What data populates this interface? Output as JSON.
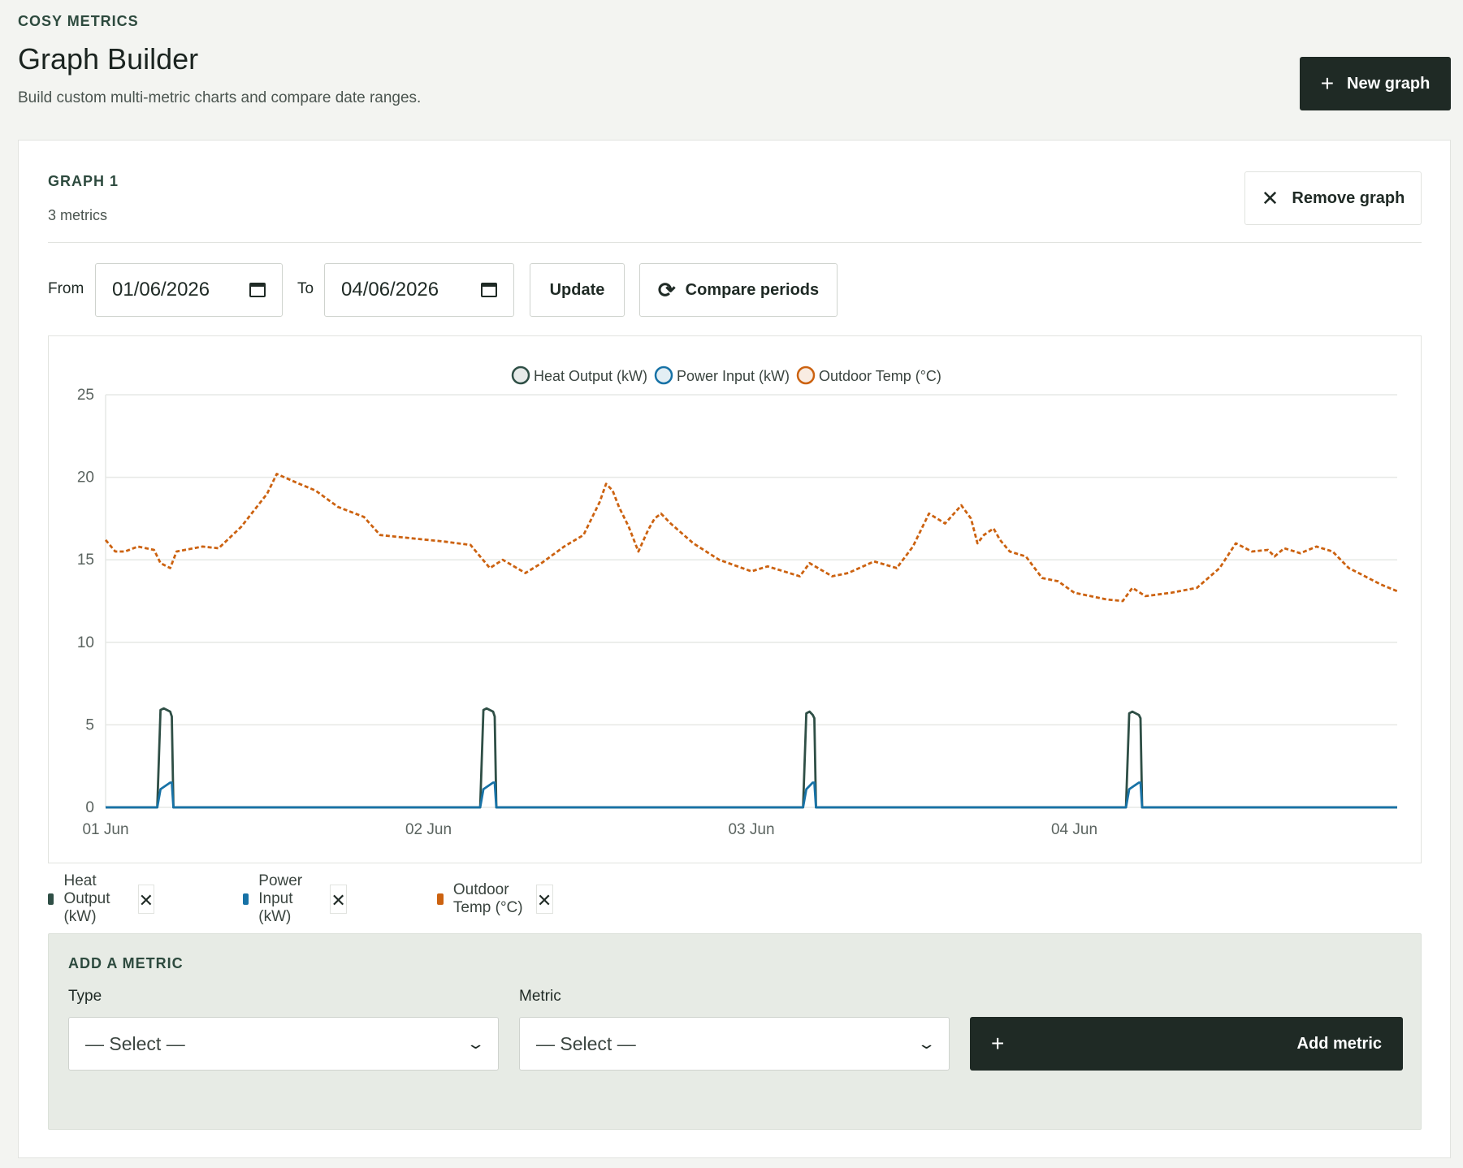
{
  "header": {
    "brand": "COSY METRICS",
    "title": "Graph Builder",
    "subtitle": "Build custom multi-metric charts and compare date ranges.",
    "new_graph_label": "New graph"
  },
  "graph": {
    "label": "GRAPH 1",
    "metric_count": "3 metrics",
    "remove_label": "Remove graph",
    "from_label": "From",
    "from_value": "01/06/2026",
    "to_label": "To",
    "to_value": "04/06/2026",
    "update_label": "Update",
    "compare_label": "Compare periods"
  },
  "metrics": [
    {
      "name": "Heat Output (kW)",
      "color": "#2f4f46"
    },
    {
      "name": "Power Input (kW)",
      "color": "#1772a6"
    },
    {
      "name": "Outdoor Temp (°C)",
      "color": "#cc6210"
    }
  ],
  "add_metric": {
    "title": "ADD A METRIC",
    "type_label": "Type",
    "type_value": "— Select —",
    "metric_label": "Metric",
    "metric_value": "— Select —",
    "button_label": "Add metric"
  },
  "chart_data": {
    "type": "line",
    "ylim": [
      0,
      25
    ],
    "yticks": [
      0,
      5,
      10,
      15,
      20,
      25
    ],
    "xlim": [
      0,
      4
    ],
    "xticks": [
      {
        "x": 0,
        "label": "01 Jun"
      },
      {
        "x": 1,
        "label": "02 Jun"
      },
      {
        "x": 2,
        "label": "03 Jun"
      },
      {
        "x": 3,
        "label": "04 Jun"
      }
    ],
    "legend_position": "top-center",
    "grid": true,
    "series": [
      {
        "name": "Heat Output (kW)",
        "color": "#2f4f46",
        "style": "solid",
        "x": [
          0,
          0.16,
          0.17,
          0.18,
          0.2,
          0.205,
          0.21,
          1.16,
          1.17,
          1.18,
          1.2,
          1.205,
          1.21,
          2.16,
          2.17,
          2.18,
          2.19,
          2.195,
          2.2,
          3.16,
          3.17,
          3.18,
          3.2,
          3.205,
          3.21,
          4
        ],
        "y": [
          0,
          0,
          5.9,
          6.0,
          5.8,
          5.5,
          0,
          0,
          5.9,
          6.0,
          5.8,
          5.5,
          0,
          0,
          5.7,
          5.8,
          5.6,
          5.4,
          0,
          0,
          5.7,
          5.8,
          5.6,
          5.4,
          0,
          0
        ]
      },
      {
        "name": "Power Input (kW)",
        "color": "#1772a6",
        "style": "solid",
        "x": [
          0,
          0.16,
          0.17,
          0.2,
          0.205,
          0.21,
          1.16,
          1.17,
          1.2,
          1.205,
          1.21,
          2.16,
          2.17,
          2.19,
          2.195,
          2.2,
          3.16,
          3.17,
          3.2,
          3.205,
          3.21,
          4
        ],
        "y": [
          0,
          0,
          1.1,
          1.5,
          1.5,
          0,
          0,
          1.1,
          1.5,
          1.5,
          0,
          0,
          1.1,
          1.5,
          1.5,
          0,
          0,
          1.1,
          1.5,
          1.5,
          0,
          0
        ]
      },
      {
        "name": "Outdoor Temp (°C)",
        "color": "#cc6210",
        "style": "dashed",
        "x": [
          0,
          0.03,
          0.06,
          0.1,
          0.15,
          0.17,
          0.2,
          0.22,
          0.3,
          0.35,
          0.42,
          0.5,
          0.53,
          0.6,
          0.65,
          0.72,
          0.8,
          0.85,
          0.9,
          0.95,
          1.05,
          1.13,
          1.19,
          1.23,
          1.3,
          1.35,
          1.42,
          1.48,
          1.53,
          1.55,
          1.57,
          1.59,
          1.62,
          1.65,
          1.68,
          1.7,
          1.72,
          1.75,
          1.82,
          1.9,
          2.0,
          2.05,
          2.1,
          2.15,
          2.18,
          2.25,
          2.3,
          2.38,
          2.45,
          2.5,
          2.55,
          2.6,
          2.65,
          2.68,
          2.7,
          2.72,
          2.75,
          2.77,
          2.8,
          2.85,
          2.9,
          2.95,
          3.0,
          3.05,
          3.1,
          3.15,
          3.18,
          3.22,
          3.3,
          3.38,
          3.45,
          3.5,
          3.55,
          3.6,
          3.62,
          3.65,
          3.7,
          3.75,
          3.8,
          3.85,
          3.9,
          3.95,
          4.0
        ],
        "y": [
          16.2,
          15.5,
          15.5,
          15.8,
          15.6,
          14.8,
          14.5,
          15.5,
          15.8,
          15.7,
          17.0,
          19.0,
          20.2,
          19.6,
          19.2,
          18.2,
          17.6,
          16.5,
          16.4,
          16.3,
          16.1,
          15.9,
          14.5,
          15.0,
          14.2,
          14.8,
          15.8,
          16.5,
          18.5,
          19.6,
          19.2,
          18.2,
          17.0,
          15.5,
          16.8,
          17.5,
          17.8,
          17.2,
          16.0,
          15.0,
          14.3,
          14.6,
          14.3,
          14.0,
          14.8,
          14.0,
          14.2,
          14.9,
          14.5,
          15.8,
          17.8,
          17.2,
          18.3,
          17.5,
          16.0,
          16.5,
          16.9,
          16.2,
          15.5,
          15.2,
          13.9,
          13.7,
          13.0,
          12.8,
          12.6,
          12.5,
          13.3,
          12.8,
          13.0,
          13.3,
          14.5,
          16.0,
          15.5,
          15.6,
          15.2,
          15.7,
          15.4,
          15.8,
          15.5,
          14.5,
          14.0,
          13.5,
          13.1
        ]
      }
    ]
  }
}
